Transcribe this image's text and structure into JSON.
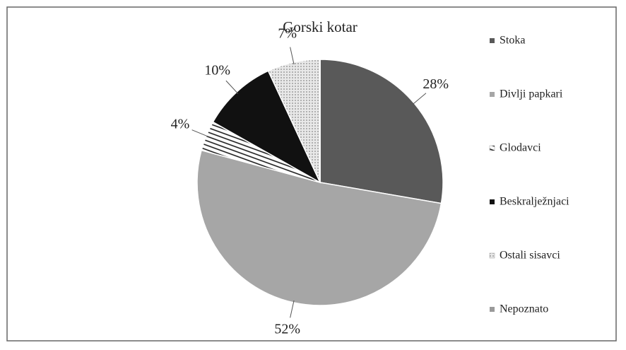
{
  "chart_data": {
    "type": "pie",
    "title": "Gorski kotar",
    "categories": [
      "Stoka",
      "Divlji papkari",
      "Glodavci",
      "Beskraljеžnjaci",
      "Ostali sisavci",
      "Nepoznato"
    ],
    "values": [
      28,
      52,
      4,
      10,
      7,
      0
    ],
    "value_labels": [
      "28%",
      "52%",
      "4%",
      "10%",
      "7%",
      null
    ],
    "colors": [
      "#595959",
      "#a6a6a6",
      "#ffffff",
      "#111111",
      "#d9d9d9",
      "#9a9a9a"
    ],
    "patterns": [
      null,
      null,
      "hatch",
      null,
      "dots",
      null
    ],
    "legend": "right"
  }
}
